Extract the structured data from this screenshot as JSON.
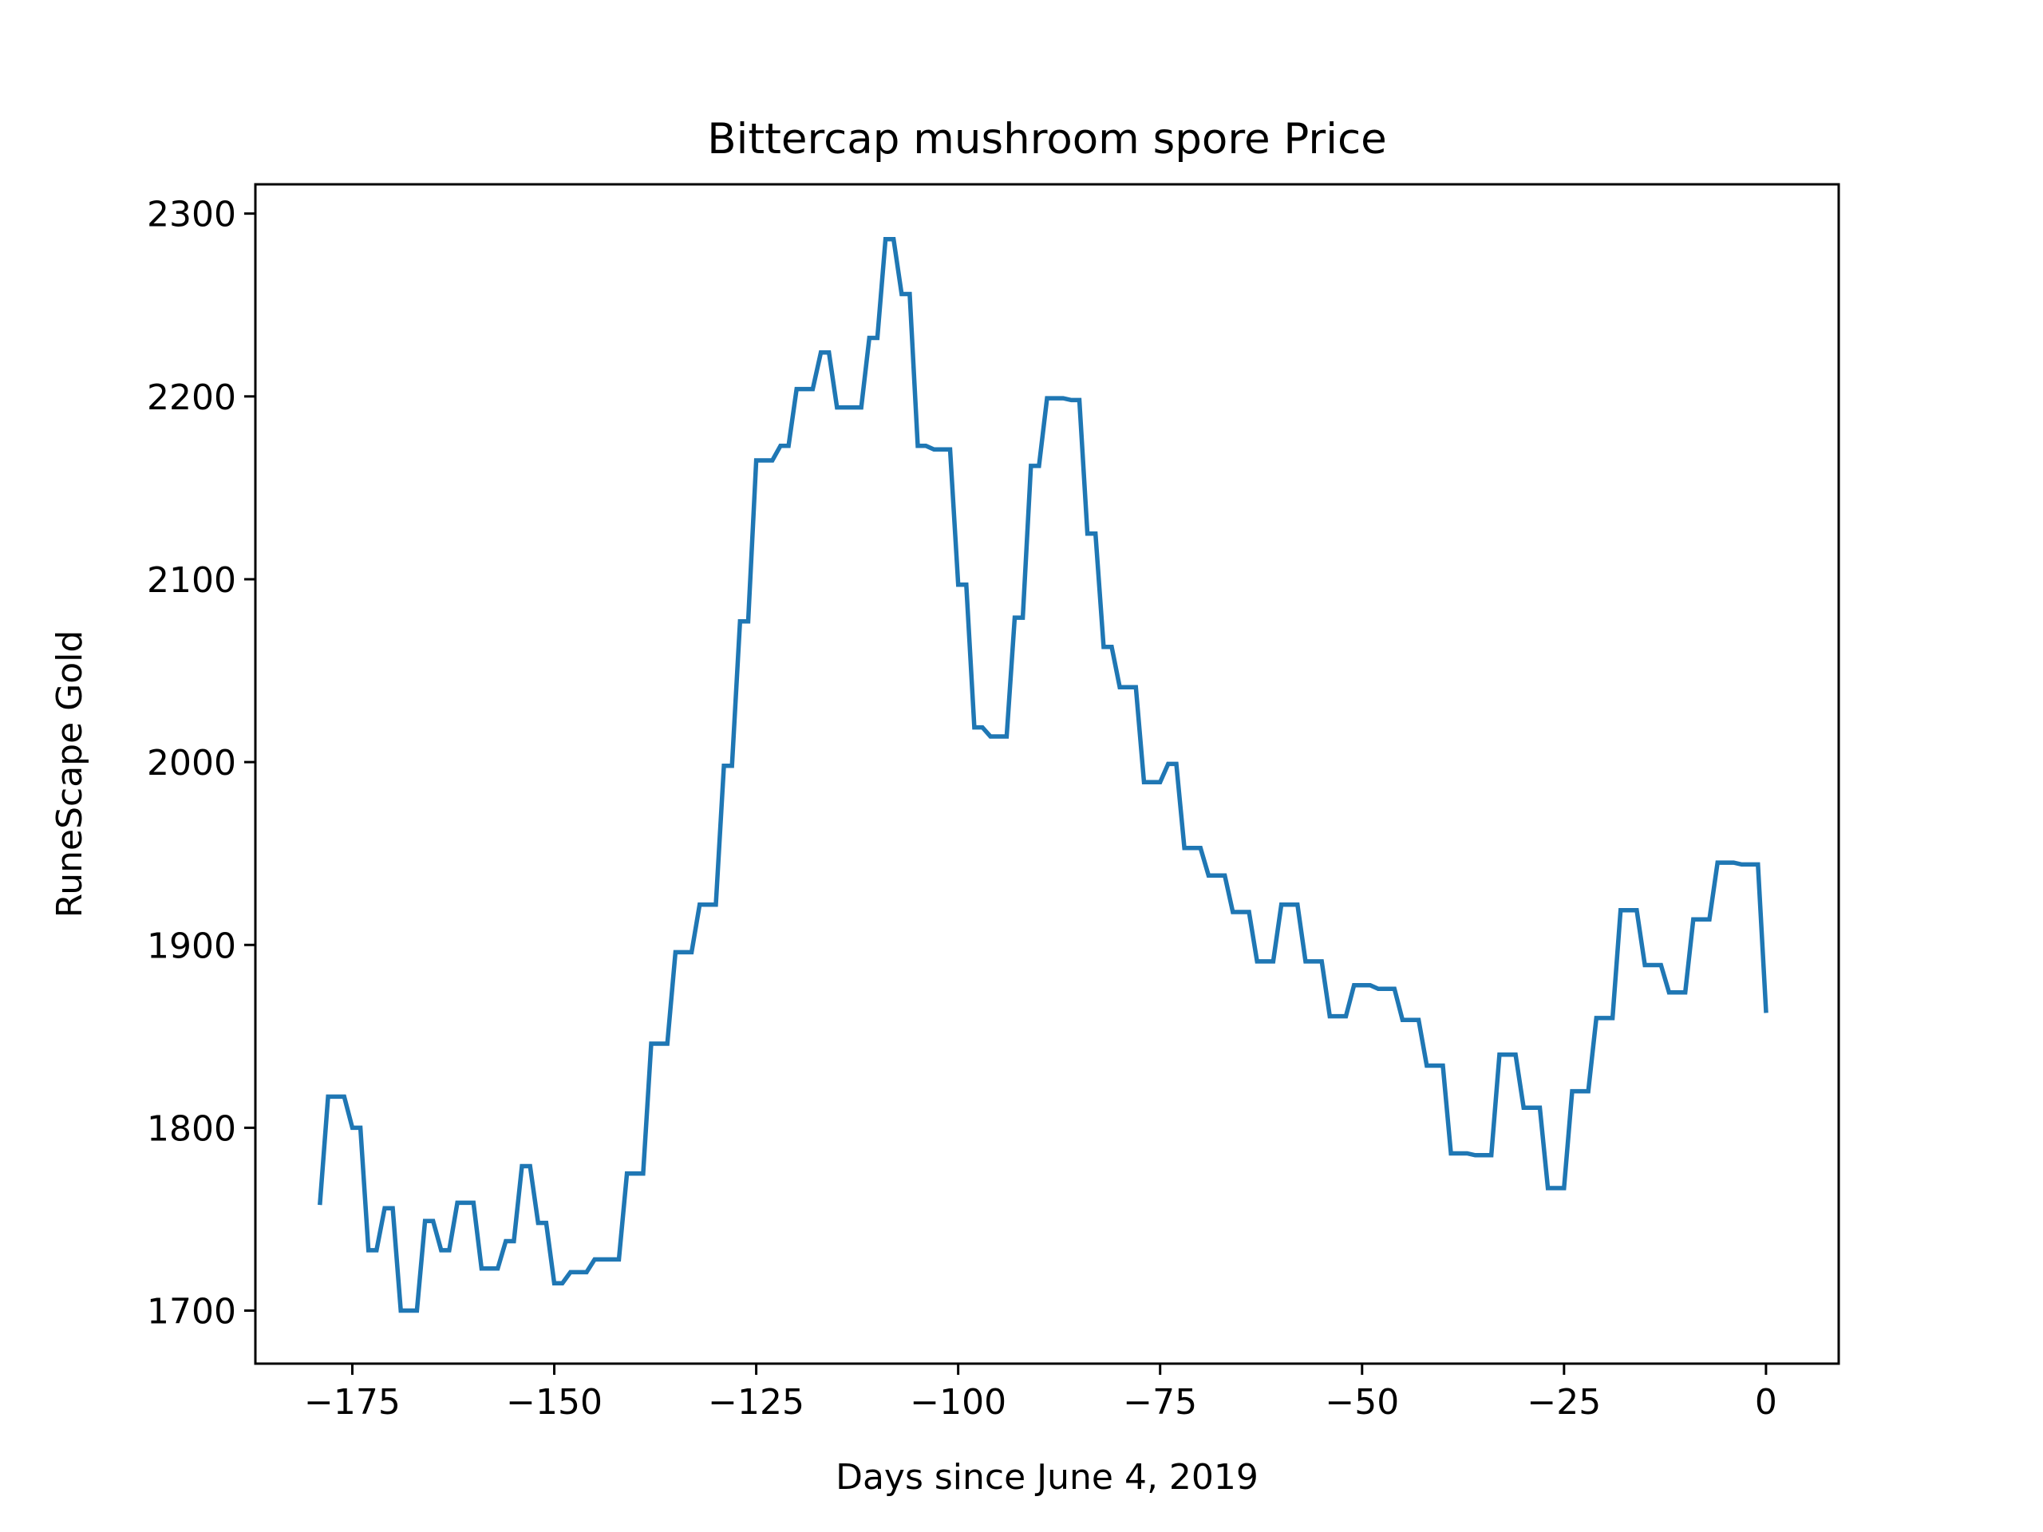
{
  "chart_data": {
    "type": "line",
    "title": "Bittercap mushroom spore Price",
    "xlabel": "Days since June 4, 2019",
    "ylabel": "RuneScape Gold",
    "xlim": [
      -187,
      9
    ],
    "ylim": [
      1671,
      2316
    ],
    "x_ticks": [
      -175,
      -150,
      -125,
      -100,
      -75,
      -50,
      -25,
      0
    ],
    "x_tick_labels": [
      "−175",
      "−150",
      "−125",
      "−100",
      "−75",
      "−50",
      "−25",
      "0"
    ],
    "y_ticks": [
      1700,
      1800,
      1900,
      2000,
      2100,
      2200,
      2300
    ],
    "y_tick_labels": [
      "1700",
      "1800",
      "1900",
      "2000",
      "2100",
      "2200",
      "2300"
    ],
    "grid": false,
    "series": [
      {
        "color": "#1f77b4",
        "points": [
          [
            -179,
            1759
          ],
          [
            -178,
            1817
          ],
          [
            -176,
            1817
          ],
          [
            -175,
            1800
          ],
          [
            -174,
            1800
          ],
          [
            -173,
            1733
          ],
          [
            -172,
            1733
          ],
          [
            -171,
            1756
          ],
          [
            -170,
            1756
          ],
          [
            -169,
            1700
          ],
          [
            -167,
            1700
          ],
          [
            -166,
            1749
          ],
          [
            -165,
            1749
          ],
          [
            -164,
            1733
          ],
          [
            -163,
            1733
          ],
          [
            -162,
            1759
          ],
          [
            -160,
            1759
          ],
          [
            -159,
            1723
          ],
          [
            -157,
            1723
          ],
          [
            -156,
            1738
          ],
          [
            -155,
            1738
          ],
          [
            -154,
            1779
          ],
          [
            -153,
            1779
          ],
          [
            -152,
            1748
          ],
          [
            -151,
            1748
          ],
          [
            -150,
            1715
          ],
          [
            -149,
            1715
          ],
          [
            -148,
            1721
          ],
          [
            -146,
            1721
          ],
          [
            -145,
            1728
          ],
          [
            -142,
            1728
          ],
          [
            -141,
            1775
          ],
          [
            -139,
            1775
          ],
          [
            -138,
            1846
          ],
          [
            -136,
            1846
          ],
          [
            -135,
            1896
          ],
          [
            -133,
            1896
          ],
          [
            -132,
            1922
          ],
          [
            -130,
            1922
          ],
          [
            -129,
            1998
          ],
          [
            -128,
            1998
          ],
          [
            -127,
            2077
          ],
          [
            -126,
            2077
          ],
          [
            -125,
            2165
          ],
          [
            -123,
            2165
          ],
          [
            -122,
            2173
          ],
          [
            -121,
            2173
          ],
          [
            -120,
            2204
          ],
          [
            -118,
            2204
          ],
          [
            -117,
            2224
          ],
          [
            -116,
            2224
          ],
          [
            -115,
            2194
          ],
          [
            -112,
            2194
          ],
          [
            -111,
            2232
          ],
          [
            -110,
            2232
          ],
          [
            -109,
            2286
          ],
          [
            -108,
            2286
          ],
          [
            -107,
            2256
          ],
          [
            -106,
            2256
          ],
          [
            -105,
            2173
          ],
          [
            -104,
            2173
          ],
          [
            -103,
            2171
          ],
          [
            -101,
            2171
          ],
          [
            -100,
            2097
          ],
          [
            -99,
            2097
          ],
          [
            -98,
            2019
          ],
          [
            -97,
            2019
          ],
          [
            -96,
            2014
          ],
          [
            -94,
            2014
          ],
          [
            -93,
            2079
          ],
          [
            -92,
            2079
          ],
          [
            -91,
            2162
          ],
          [
            -90,
            2162
          ],
          [
            -89,
            2199
          ],
          [
            -87,
            2199
          ],
          [
            -86,
            2198
          ],
          [
            -85,
            2198
          ],
          [
            -84,
            2125
          ],
          [
            -83,
            2125
          ],
          [
            -82,
            2063
          ],
          [
            -81,
            2063
          ],
          [
            -80,
            2041
          ],
          [
            -78,
            2041
          ],
          [
            -77,
            1989
          ],
          [
            -75,
            1989
          ],
          [
            -74,
            1999
          ],
          [
            -73,
            1999
          ],
          [
            -72,
            1953
          ],
          [
            -70,
            1953
          ],
          [
            -69,
            1938
          ],
          [
            -67,
            1938
          ],
          [
            -66,
            1918
          ],
          [
            -64,
            1918
          ],
          [
            -63,
            1891
          ],
          [
            -61,
            1891
          ],
          [
            -60,
            1922
          ],
          [
            -58,
            1922
          ],
          [
            -57,
            1891
          ],
          [
            -55,
            1891
          ],
          [
            -54,
            1861
          ],
          [
            -52,
            1861
          ],
          [
            -51,
            1878
          ],
          [
            -49,
            1878
          ],
          [
            -48,
            1876
          ],
          [
            -46,
            1876
          ],
          [
            -45,
            1859
          ],
          [
            -43,
            1859
          ],
          [
            -42,
            1834
          ],
          [
            -40,
            1834
          ],
          [
            -39,
            1786
          ],
          [
            -37,
            1786
          ],
          [
            -36,
            1785
          ],
          [
            -34,
            1785
          ],
          [
            -33,
            1840
          ],
          [
            -31,
            1840
          ],
          [
            -30,
            1811
          ],
          [
            -28,
            1811
          ],
          [
            -27,
            1767
          ],
          [
            -25,
            1767
          ],
          [
            -24,
            1820
          ],
          [
            -22,
            1820
          ],
          [
            -21,
            1860
          ],
          [
            -19,
            1860
          ],
          [
            -18,
            1919
          ],
          [
            -16,
            1919
          ],
          [
            -15,
            1889
          ],
          [
            -13,
            1889
          ],
          [
            -12,
            1874
          ],
          [
            -10,
            1874
          ],
          [
            -9,
            1914
          ],
          [
            -7,
            1914
          ],
          [
            -6,
            1945
          ],
          [
            -4,
            1945
          ],
          [
            -3,
            1944
          ],
          [
            -1,
            1944
          ],
          [
            0,
            1864
          ]
        ]
      }
    ]
  }
}
